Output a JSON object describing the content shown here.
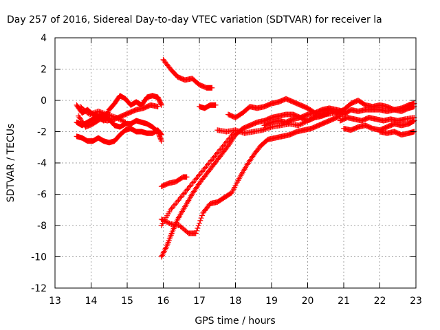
{
  "chart_data": {
    "type": "scatter",
    "title": "Day 257 of 2016, Sidereal Day-to-day VTEC variation (SDTVAR) for receiver la",
    "xlabel": "GPS time / hours",
    "ylabel": "SDTVAR / TECUs",
    "xlim": [
      13,
      23
    ],
    "ylim": [
      -12,
      4
    ],
    "xticks": [
      "13",
      "14",
      "15",
      "16",
      "17",
      "18",
      "19",
      "20",
      "21",
      "22",
      "23"
    ],
    "yticks": [
      "4",
      "2",
      "0",
      "-2",
      "-4",
      "-6",
      "-8",
      "-10",
      "-12"
    ],
    "grid": true,
    "marker": "+",
    "color": "#ff0000",
    "series": [
      {
        "x": [
          13.6,
          13.75,
          13.9,
          14.05,
          14.2,
          14.35,
          14.5,
          14.65,
          14.8,
          14.95,
          15.1,
          15.25,
          15.4,
          15.55,
          15.7,
          15.85,
          15.95
        ],
        "y": [
          -0.3,
          -0.8,
          -0.6,
          -0.9,
          -1.0,
          -1.3,
          -0.6,
          -0.2,
          0.3,
          0.1,
          -0.3,
          -0.1,
          -0.3,
          0.2,
          0.3,
          0.2,
          -0.3
        ]
      },
      {
        "x": [
          13.6,
          13.75,
          13.9,
          14.05,
          14.2,
          14.35,
          14.5,
          14.65,
          14.8,
          14.95,
          15.1,
          15.25,
          15.4,
          15.55,
          15.7,
          15.85,
          15.95
        ],
        "y": [
          -2.3,
          -2.4,
          -2.6,
          -2.6,
          -2.4,
          -2.6,
          -2.7,
          -2.6,
          -2.2,
          -1.9,
          -1.8,
          -2.0,
          -2.0,
          -2.1,
          -2.1,
          -1.9,
          -2.2
        ]
      },
      {
        "x": [
          13.6,
          13.75,
          13.9,
          14.05,
          14.2,
          14.35,
          14.5,
          14.65,
          14.8,
          14.95,
          15.1,
          15.25,
          15.4,
          15.55,
          15.7,
          15.85,
          15.95
        ],
        "y": [
          -1.4,
          -1.6,
          -1.4,
          -1.2,
          -1.0,
          -1.0,
          -1.2,
          -1.6,
          -1.7,
          -1.5,
          -1.5,
          -1.3,
          -1.4,
          -1.5,
          -1.7,
          -2.0,
          -2.6
        ]
      },
      {
        "x": [
          13.65,
          13.85,
          14.05,
          14.25,
          14.45,
          14.65,
          14.85,
          15.05,
          15.25,
          15.45,
          15.65,
          15.85
        ],
        "y": [
          -1.0,
          -1.7,
          -1.5,
          -1.2,
          -1.3,
          -1.2,
          -1.0,
          -0.8,
          -0.6,
          -0.5,
          -0.3,
          -0.4
        ]
      },
      {
        "x": [
          13.7,
          13.95,
          14.2,
          14.45,
          14.7,
          14.95
        ],
        "y": [
          -0.4,
          -0.9,
          -0.7,
          -0.9,
          -1.1,
          -1.4
        ]
      },
      {
        "x": [
          16.0,
          16.2,
          16.4,
          16.6,
          16.8,
          17.0,
          17.2,
          17.35
        ],
        "y": [
          2.6,
          2.0,
          1.5,
          1.3,
          1.4,
          1.0,
          0.8,
          0.8
        ]
      },
      {
        "x": [
          17.0,
          17.15,
          17.3,
          17.45
        ],
        "y": [
          -0.4,
          -0.5,
          -0.3,
          -0.3
        ]
      },
      {
        "x": [
          15.95,
          16.15,
          16.35,
          16.55,
          16.65
        ],
        "y": [
          -5.5,
          -5.3,
          -5.2,
          -4.9,
          -4.9
        ]
      },
      {
        "x": [
          15.95,
          16.1,
          16.25,
          16.4,
          16.6,
          16.8,
          17.0,
          17.2,
          17.4,
          17.6,
          17.8,
          18.0,
          18.2,
          18.4,
          18.6,
          18.8,
          19.0,
          19.2,
          19.4,
          19.6,
          19.8,
          20.0,
          20.2,
          20.4,
          20.6
        ],
        "y": [
          -10.0,
          -9.3,
          -8.4,
          -7.6,
          -6.8,
          -6.0,
          -5.3,
          -4.7,
          -4.1,
          -3.5,
          -2.9,
          -2.2,
          -1.8,
          -1.6,
          -1.4,
          -1.3,
          -1.1,
          -1.0,
          -0.9,
          -0.9,
          -1.1,
          -1.3,
          -1.1,
          -1.0,
          -0.8
        ]
      },
      {
        "x": [
          15.95,
          16.2,
          16.45,
          16.7,
          16.9,
          17.1,
          17.3,
          17.5,
          17.7,
          17.9,
          18.1,
          18.3,
          18.5,
          18.7,
          18.9,
          19.1,
          19.3,
          19.5,
          19.7,
          19.9,
          20.1,
          20.3,
          20.5,
          20.7,
          20.9
        ],
        "y": [
          -7.6,
          -7.9,
          -8.0,
          -8.5,
          -8.5,
          -7.2,
          -6.6,
          -6.5,
          -6.2,
          -5.9,
          -5.0,
          -4.2,
          -3.5,
          -2.9,
          -2.5,
          -2.4,
          -2.3,
          -2.2,
          -2.0,
          -1.9,
          -1.8,
          -1.6,
          -1.4,
          -1.2,
          -1.0
        ]
      },
      {
        "x": [
          15.95,
          16.2,
          16.45,
          16.7,
          16.95,
          17.2,
          17.45,
          17.7,
          17.95
        ],
        "y": [
          -8.0,
          -7.0,
          -6.3,
          -5.6,
          -4.9,
          -4.2,
          -3.5,
          -2.8,
          -2.1
        ]
      },
      {
        "x": [
          17.5,
          17.75,
          18.0,
          18.25,
          18.5,
          18.75,
          19.0,
          19.25,
          19.5,
          19.75,
          20.0,
          20.25,
          20.5,
          20.75,
          21.0
        ],
        "y": [
          -1.9,
          -2.0,
          -1.9,
          -2.1,
          -2.0,
          -1.9,
          -1.7,
          -1.6,
          -1.5,
          -1.6,
          -1.3,
          -1.0,
          -0.9,
          -0.8,
          -0.7
        ]
      },
      {
        "x": [
          17.8,
          18.0,
          18.2,
          18.4,
          18.6,
          18.8,
          19.0,
          19.2,
          19.4,
          19.6,
          19.8,
          20.0,
          20.2,
          20.4
        ],
        "y": [
          -0.9,
          -1.1,
          -0.8,
          -0.4,
          -0.5,
          -0.4,
          -0.2,
          -0.1,
          0.1,
          -0.1,
          -0.3,
          -0.5,
          -0.8,
          -0.9
        ]
      },
      {
        "x": [
          18.8,
          19.0,
          19.2,
          19.4,
          19.6,
          19.8,
          20.0,
          20.2,
          20.4,
          20.6,
          20.8,
          21.0
        ],
        "y": [
          -1.6,
          -1.4,
          -1.3,
          -1.4,
          -1.2,
          -1.1,
          -0.9,
          -0.8,
          -0.6,
          -0.5,
          -0.6,
          -0.7
        ]
      },
      {
        "x": [
          20.4,
          20.6,
          20.8,
          21.0,
          21.2,
          21.4,
          21.6,
          21.8,
          22.0,
          22.2,
          22.4,
          22.6,
          22.8,
          22.95
        ],
        "y": [
          -0.7,
          -0.6,
          -0.8,
          -0.6,
          -0.2,
          0.0,
          -0.3,
          -0.4,
          -0.3,
          -0.4,
          -0.6,
          -0.5,
          -0.3,
          -0.2
        ]
      },
      {
        "x": [
          20.8,
          21.0,
          21.2,
          21.4,
          21.6,
          21.8,
          22.0,
          22.2,
          22.4,
          22.6,
          22.8,
          22.95
        ],
        "y": [
          -0.8,
          -0.9,
          -0.6,
          -0.7,
          -0.6,
          -0.6,
          -0.6,
          -0.7,
          -0.6,
          -0.7,
          -0.5,
          -0.4
        ]
      },
      {
        "x": [
          20.9,
          21.1,
          21.3,
          21.5,
          21.7,
          21.9,
          22.1,
          22.3,
          22.5,
          22.7,
          22.95
        ],
        "y": [
          -1.3,
          -1.1,
          -1.2,
          -1.3,
          -1.1,
          -1.2,
          -1.3,
          -1.2,
          -1.3,
          -1.2,
          -1.1
        ]
      },
      {
        "x": [
          21.0,
          21.2,
          21.4,
          21.6,
          21.8,
          22.0,
          22.2,
          22.4,
          22.6,
          22.8,
          22.95
        ],
        "y": [
          -1.8,
          -1.9,
          -1.7,
          -1.6,
          -1.8,
          -1.9,
          -1.7,
          -1.5,
          -1.6,
          -1.5,
          -1.3
        ]
      },
      {
        "x": [
          22.0,
          22.2,
          22.4,
          22.6,
          22.8,
          22.95
        ],
        "y": [
          -2.0,
          -2.1,
          -2.0,
          -2.2,
          -2.1,
          -2.0
        ]
      }
    ]
  }
}
